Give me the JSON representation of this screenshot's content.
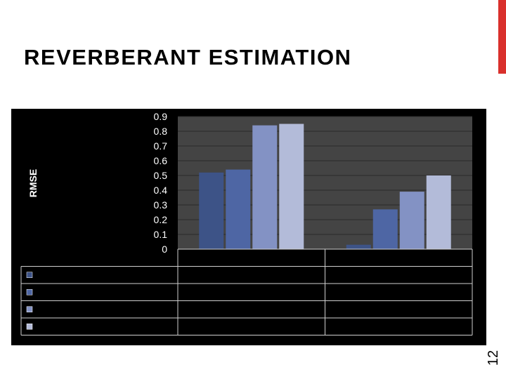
{
  "slide": {
    "title": "REVERBERANT ESTIMATION",
    "page_number": "12",
    "accent_color": "#d9302c"
  },
  "chart_data": {
    "type": "bar",
    "ylabel": "RMSE",
    "xlabel": "",
    "ylim": [
      0,
      0.9
    ],
    "yticks": [
      "0.9",
      "0.8",
      "0.7",
      "0.6",
      "0.5",
      "0.4",
      "0.3",
      "0.2",
      "0.1",
      "0"
    ],
    "categories": [
      "",
      ""
    ],
    "series": [
      {
        "color": "#3d5387",
        "values": [
          0.52,
          0.03
        ]
      },
      {
        "color": "#4e66a4",
        "values": [
          0.54,
          0.27
        ]
      },
      {
        "color": "#8392c4",
        "values": [
          0.84,
          0.39
        ]
      },
      {
        "color": "#b3bbd9",
        "values": [
          0.85,
          0.5
        ]
      }
    ],
    "grid": true,
    "legend": "data-table-left",
    "background": "#000000",
    "plot_background": "#444444"
  }
}
